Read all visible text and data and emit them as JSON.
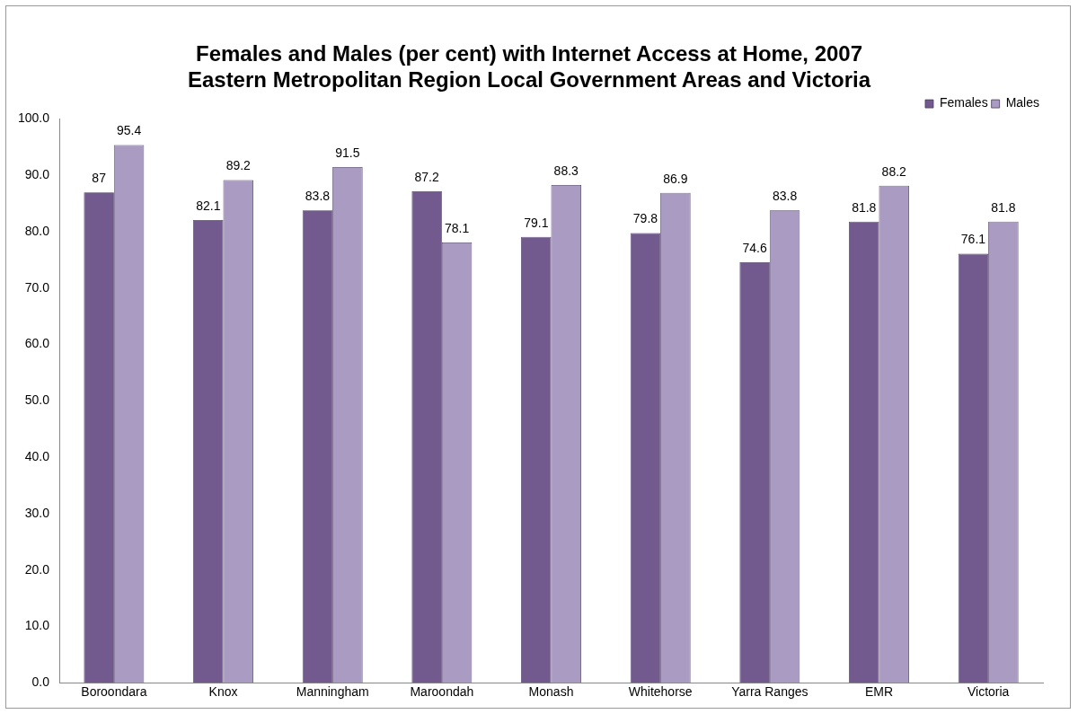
{
  "chart_data": {
    "type": "bar",
    "title": "Females and Males (per cent) with Internet Access at Home, 2007\nEastern Metropolitan Region Local Government Areas and Victoria",
    "categories": [
      "Boroondara",
      "Knox",
      "Manningham",
      "Maroondah",
      "Monash",
      "Whitehorse",
      "Yarra Ranges",
      "EMR",
      "Victoria"
    ],
    "series": [
      {
        "name": "Females",
        "color": "#725a8f",
        "values": [
          87,
          82.1,
          83.8,
          87.2,
          79.1,
          79.8,
          74.6,
          81.8,
          76.1
        ]
      },
      {
        "name": "Males",
        "color": "#a99bc2",
        "values": [
          95.4,
          89.2,
          91.5,
          78.1,
          88.3,
          86.9,
          83.8,
          88.2,
          81.8
        ]
      }
    ],
    "ylim": [
      0,
      100
    ],
    "yticks": [
      {
        "value": 0,
        "label": "0.0"
      },
      {
        "value": 10,
        "label": "10.0"
      },
      {
        "value": 20,
        "label": "20.0"
      },
      {
        "value": 30,
        "label": "30.0"
      },
      {
        "value": 40,
        "label": "40.0"
      },
      {
        "value": 50,
        "label": "50.0"
      },
      {
        "value": 60,
        "label": "60.0"
      },
      {
        "value": 70,
        "label": "70.0"
      },
      {
        "value": 80,
        "label": "80.0"
      },
      {
        "value": 90,
        "label": "90.0"
      },
      {
        "value": 100,
        "label": "100.0"
      }
    ],
    "grid": false,
    "legend": "top right",
    "data_labels": true
  }
}
